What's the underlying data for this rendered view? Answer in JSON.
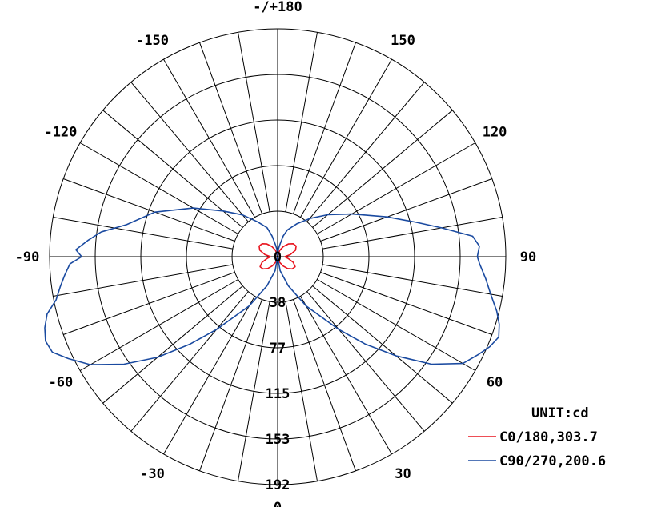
{
  "chart_data": {
    "type": "polar",
    "title": "",
    "unit_label": "UNIT:cd",
    "angle_labels": [
      {
        "angle": 0,
        "text": "0"
      },
      {
        "angle": 30,
        "text": "30"
      },
      {
        "angle": 60,
        "text": "60"
      },
      {
        "angle": 90,
        "text": "90"
      },
      {
        "angle": 120,
        "text": "120"
      },
      {
        "angle": 150,
        "text": "150"
      },
      {
        "angle": 180,
        "text": "-/+180"
      },
      {
        "angle": -150,
        "text": "-150"
      },
      {
        "angle": -120,
        "text": "-120"
      },
      {
        "angle": -90,
        "text": "-90"
      },
      {
        "angle": -60,
        "text": "-60"
      },
      {
        "angle": -30,
        "text": "-30"
      }
    ],
    "radial_ticks": [
      0,
      38,
      77,
      115,
      153,
      192
    ],
    "rmax": 192,
    "colors": {
      "grid": "#000000",
      "c0": "#e8141e",
      "c90": "#1a4aa0"
    },
    "series": [
      {
        "name": "C0/180,303.7",
        "color": "#e8141e",
        "points": [
          [
            -180,
            0
          ],
          [
            -170,
            2
          ],
          [
            -160,
            6
          ],
          [
            -150,
            10
          ],
          [
            -140,
            14
          ],
          [
            -130,
            17
          ],
          [
            -120,
            18
          ],
          [
            -110,
            16
          ],
          [
            -100,
            11
          ],
          [
            -90,
            6
          ],
          [
            -80,
            9
          ],
          [
            -70,
            14
          ],
          [
            -60,
            17
          ],
          [
            -50,
            16
          ],
          [
            -40,
            13
          ],
          [
            -30,
            9
          ],
          [
            -20,
            5
          ],
          [
            -10,
            2
          ],
          [
            0,
            0
          ],
          [
            10,
            2
          ],
          [
            20,
            5
          ],
          [
            30,
            9
          ],
          [
            40,
            13
          ],
          [
            50,
            16
          ],
          [
            60,
            17
          ],
          [
            70,
            14
          ],
          [
            80,
            9
          ],
          [
            90,
            6
          ],
          [
            100,
            11
          ],
          [
            110,
            16
          ],
          [
            120,
            18
          ],
          [
            130,
            17
          ],
          [
            140,
            14
          ],
          [
            150,
            10
          ],
          [
            160,
            6
          ],
          [
            170,
            2
          ],
          [
            180,
            0
          ]
        ]
      },
      {
        "name": "C90/270,200.6",
        "color": "#1a4aa0",
        "points": [
          [
            -180,
            0
          ],
          [
            -175,
            6
          ],
          [
            -170,
            10
          ],
          [
            -165,
            18
          ],
          [
            -160,
            26
          ],
          [
            -150,
            34
          ],
          [
            -140,
            46
          ],
          [
            -130,
            60
          ],
          [
            -120,
            82
          ],
          [
            -110,
            110
          ],
          [
            -102,
            130
          ],
          [
            -98,
            150
          ],
          [
            -95,
            160
          ],
          [
            -92,
            170
          ],
          [
            -90,
            165
          ],
          [
            -88,
            175
          ],
          [
            -85,
            180
          ],
          [
            -82,
            185
          ],
          [
            -79,
            190
          ],
          [
            -76,
            200
          ],
          [
            -73,
            205
          ],
          [
            -70,
            208
          ],
          [
            -67,
            206
          ],
          [
            -64,
            196
          ],
          [
            -60,
            182
          ],
          [
            -55,
            158
          ],
          [
            -50,
            132
          ],
          [
            -45,
            104
          ],
          [
            -40,
            80
          ],
          [
            -30,
            48
          ],
          [
            -20,
            26
          ],
          [
            -10,
            12
          ],
          [
            0,
            0
          ],
          [
            10,
            12
          ],
          [
            20,
            26
          ],
          [
            30,
            48
          ],
          [
            40,
            80
          ],
          [
            45,
            104
          ],
          [
            50,
            130
          ],
          [
            55,
            158
          ],
          [
            60,
            180
          ],
          [
            64,
            188
          ],
          [
            67,
            194
          ],
          [
            70,
            198
          ],
          [
            73,
            195
          ],
          [
            76,
            190
          ],
          [
            80,
            182
          ],
          [
            84,
            176
          ],
          [
            88,
            170
          ],
          [
            90,
            168
          ],
          [
            93,
            170
          ],
          [
            96,
            165
          ],
          [
            100,
            140
          ],
          [
            104,
            120
          ],
          [
            110,
            98
          ],
          [
            120,
            72
          ],
          [
            130,
            55
          ],
          [
            140,
            42
          ],
          [
            150,
            32
          ],
          [
            160,
            24
          ],
          [
            165,
            18
          ],
          [
            170,
            10
          ],
          [
            175,
            6
          ],
          [
            180,
            0
          ]
        ]
      }
    ]
  }
}
